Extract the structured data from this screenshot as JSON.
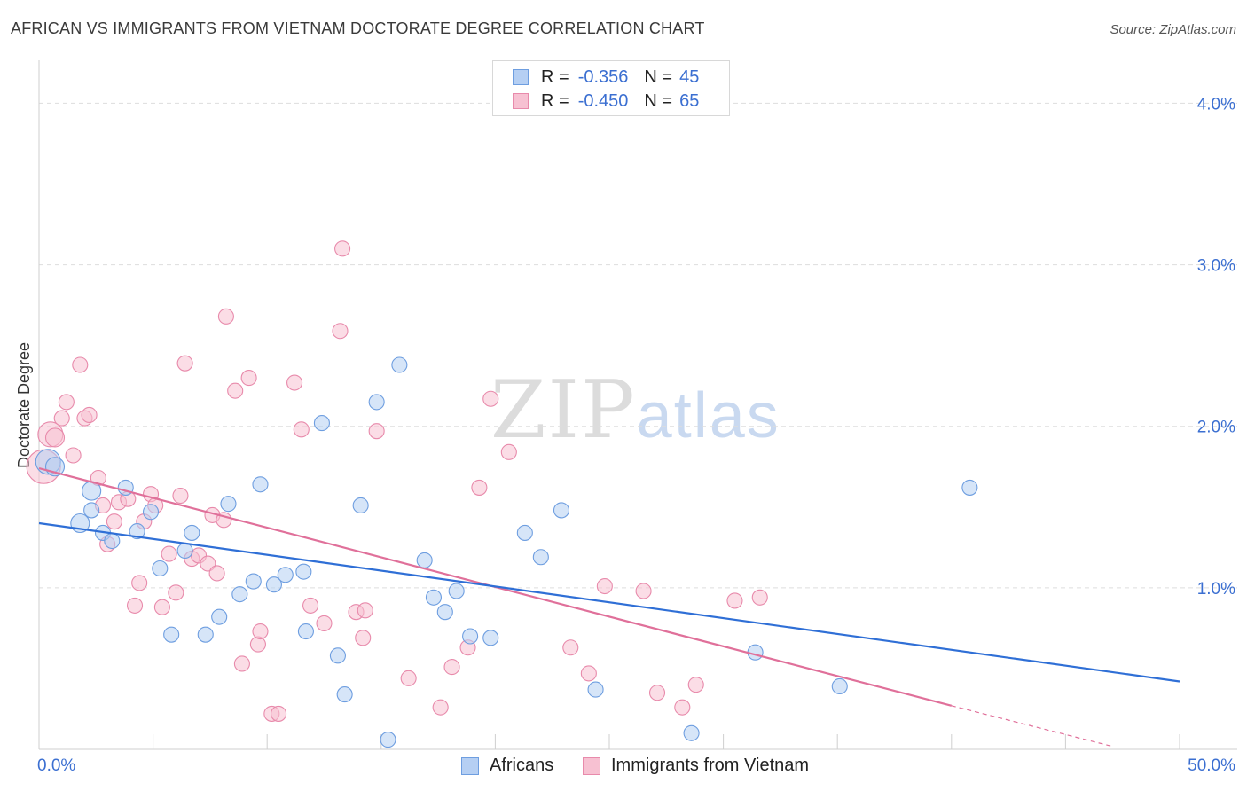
{
  "title": "AFRICAN VS IMMIGRANTS FROM VIETNAM DOCTORATE DEGREE CORRELATION CHART",
  "source": "Source: ZipAtlas.com",
  "watermark": {
    "zip": "ZIP",
    "atlas": "atlas"
  },
  "legend_top": [
    {
      "r_label": "R =",
      "r_value": "-0.356",
      "n_label": "N =",
      "n_value": "45"
    },
    {
      "r_label": "R =",
      "r_value": "-0.450",
      "n_label": "N =",
      "n_value": "65"
    }
  ],
  "legend_bottom": [
    "Africans",
    "Immigrants from Vietnam"
  ],
  "colors": {
    "africans_fill": "#b5cff3",
    "africans_stroke": "#6e9ee0",
    "africans_line": "#2f6fd6",
    "vietnam_fill": "#f7c1d2",
    "vietnam_stroke": "#e88aab",
    "vietnam_line": "#e0709a",
    "axis_text": "#3b6fd1",
    "grid": "#dddddd"
  },
  "chart_data": {
    "type": "scatter",
    "title": "AFRICAN VS IMMIGRANTS FROM VIETNAM DOCTORATE DEGREE CORRELATION CHART",
    "xlabel": "",
    "ylabel": "Doctorate Degree",
    "xlim": [
      0,
      50
    ],
    "ylim": [
      0,
      4.2
    ],
    "x_tick_labels": [
      "0.0%",
      "50.0%"
    ],
    "y_ticks": [
      1.0,
      2.0,
      3.0,
      4.0
    ],
    "y_tick_labels": [
      "1.0%",
      "2.0%",
      "3.0%",
      "4.0%"
    ],
    "grid": true,
    "legend_placement": "top-center",
    "series": [
      {
        "name": "Africans",
        "r": -0.356,
        "n": 45,
        "trend": {
          "x": [
            0,
            50
          ],
          "y": [
            1.4,
            0.42
          ]
        },
        "points": [
          [
            0.4,
            1.78,
            "l"
          ],
          [
            0.7,
            1.75,
            "m"
          ],
          [
            2.3,
            1.6,
            "m"
          ],
          [
            1.8,
            1.4,
            "m"
          ],
          [
            2.3,
            1.48,
            "s"
          ],
          [
            2.8,
            1.34,
            "s"
          ],
          [
            3.2,
            1.29,
            "s"
          ],
          [
            3.8,
            1.62,
            "s"
          ],
          [
            4.3,
            1.35,
            "s"
          ],
          [
            4.9,
            1.47,
            "s"
          ],
          [
            5.3,
            1.12,
            "s"
          ],
          [
            5.8,
            0.71,
            "s"
          ],
          [
            6.4,
            1.23,
            "s"
          ],
          [
            6.7,
            1.34,
            "s"
          ],
          [
            7.3,
            0.71,
            "s"
          ],
          [
            7.9,
            0.82,
            "s"
          ],
          [
            8.3,
            1.52,
            "s"
          ],
          [
            8.8,
            0.96,
            "s"
          ],
          [
            9.4,
            1.04,
            "s"
          ],
          [
            9.7,
            1.64,
            "s"
          ],
          [
            10.3,
            1.02,
            "s"
          ],
          [
            10.8,
            1.08,
            "s"
          ],
          [
            11.6,
            1.1,
            "s"
          ],
          [
            11.7,
            0.73,
            "s"
          ],
          [
            12.4,
            2.02,
            "s"
          ],
          [
            13.1,
            0.58,
            "s"
          ],
          [
            13.4,
            0.34,
            "s"
          ],
          [
            14.1,
            1.51,
            "s"
          ],
          [
            14.8,
            2.15,
            "s"
          ],
          [
            15.3,
            0.06,
            "s"
          ],
          [
            15.8,
            2.38,
            "s"
          ],
          [
            16.9,
            1.17,
            "s"
          ],
          [
            17.3,
            0.94,
            "s"
          ],
          [
            17.8,
            0.85,
            "s"
          ],
          [
            18.3,
            0.98,
            "s"
          ],
          [
            18.9,
            0.7,
            "s"
          ],
          [
            19.8,
            0.69,
            "s"
          ],
          [
            21.3,
            1.34,
            "s"
          ],
          [
            22.0,
            1.19,
            "s"
          ],
          [
            22.9,
            1.48,
            "s"
          ],
          [
            24.4,
            0.37,
            "s"
          ],
          [
            28.6,
            0.1,
            "s"
          ],
          [
            31.4,
            0.6,
            "s"
          ],
          [
            35.1,
            0.39,
            "s"
          ],
          [
            40.8,
            1.62,
            "s"
          ]
        ]
      },
      {
        "name": "Immigrants from Vietnam",
        "r": -0.45,
        "n": 65,
        "trend": {
          "x": [
            0,
            40
          ],
          "y": [
            1.74,
            0.27
          ]
        },
        "trend_dashed": {
          "x": [
            40,
            47
          ],
          "y": [
            0.27,
            0.02
          ]
        },
        "points": [
          [
            0.2,
            1.75,
            "xl"
          ],
          [
            0.5,
            1.95,
            "l"
          ],
          [
            0.7,
            1.93,
            "m"
          ],
          [
            1.0,
            2.05,
            "s"
          ],
          [
            1.2,
            2.15,
            "s"
          ],
          [
            1.5,
            1.82,
            "s"
          ],
          [
            1.8,
            2.38,
            "s"
          ],
          [
            2.0,
            2.05,
            "s"
          ],
          [
            2.2,
            2.07,
            "s"
          ],
          [
            2.6,
            1.68,
            "s"
          ],
          [
            2.8,
            1.51,
            "s"
          ],
          [
            3.0,
            1.27,
            "s"
          ],
          [
            3.3,
            1.41,
            "s"
          ],
          [
            3.5,
            1.53,
            "s"
          ],
          [
            3.9,
            1.55,
            "s"
          ],
          [
            4.2,
            0.89,
            "s"
          ],
          [
            4.4,
            1.03,
            "s"
          ],
          [
            4.6,
            1.41,
            "s"
          ],
          [
            4.9,
            1.58,
            "s"
          ],
          [
            5.1,
            1.51,
            "s"
          ],
          [
            5.4,
            0.88,
            "s"
          ],
          [
            5.7,
            1.21,
            "s"
          ],
          [
            6.0,
            0.97,
            "s"
          ],
          [
            6.2,
            1.57,
            "s"
          ],
          [
            6.4,
            2.39,
            "s"
          ],
          [
            6.7,
            1.18,
            "s"
          ],
          [
            7.0,
            1.2,
            "s"
          ],
          [
            7.4,
            1.15,
            "s"
          ],
          [
            7.6,
            1.45,
            "s"
          ],
          [
            7.8,
            1.09,
            "s"
          ],
          [
            8.1,
            1.42,
            "s"
          ],
          [
            8.2,
            2.68,
            "s"
          ],
          [
            8.6,
            2.22,
            "s"
          ],
          [
            8.9,
            0.53,
            "s"
          ],
          [
            9.2,
            2.3,
            "s"
          ],
          [
            9.6,
            0.65,
            "s"
          ],
          [
            9.7,
            0.73,
            "s"
          ],
          [
            10.2,
            0.22,
            "s"
          ],
          [
            10.5,
            0.22,
            "s"
          ],
          [
            11.2,
            2.27,
            "s"
          ],
          [
            11.5,
            1.98,
            "s"
          ],
          [
            11.9,
            0.89,
            "s"
          ],
          [
            12.5,
            0.78,
            "s"
          ],
          [
            13.2,
            2.59,
            "s"
          ],
          [
            13.3,
            3.1,
            "s"
          ],
          [
            13.9,
            0.85,
            "s"
          ],
          [
            14.2,
            0.69,
            "s"
          ],
          [
            14.3,
            0.86,
            "s"
          ],
          [
            14.8,
            1.97,
            "s"
          ],
          [
            16.2,
            0.44,
            "s"
          ],
          [
            17.6,
            0.26,
            "s"
          ],
          [
            18.1,
            0.51,
            "s"
          ],
          [
            18.8,
            0.63,
            "s"
          ],
          [
            19.3,
            1.62,
            "s"
          ],
          [
            19.8,
            2.17,
            "s"
          ],
          [
            20.6,
            1.84,
            "s"
          ],
          [
            23.3,
            0.63,
            "s"
          ],
          [
            24.1,
            0.47,
            "s"
          ],
          [
            24.8,
            1.01,
            "s"
          ],
          [
            26.5,
            0.98,
            "s"
          ],
          [
            27.1,
            0.35,
            "s"
          ],
          [
            28.2,
            0.26,
            "s"
          ],
          [
            28.8,
            0.4,
            "s"
          ],
          [
            30.5,
            0.92,
            "s"
          ],
          [
            31.6,
            0.94,
            "s"
          ]
        ]
      }
    ]
  }
}
